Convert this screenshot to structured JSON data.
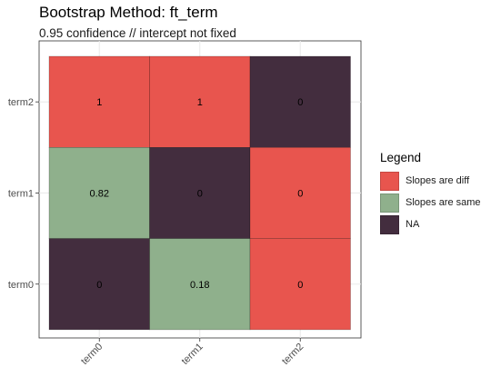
{
  "chart_data": {
    "type": "heatmap",
    "title": "Bootstrap Method: ft_term",
    "subtitle": "0.95 confidence // intercept not fixed",
    "x_categories": [
      "term0",
      "term1",
      "term2"
    ],
    "y_categories": [
      "term0",
      "term1",
      "term2"
    ],
    "cells": [
      {
        "x": "term0",
        "y": "term2",
        "value": "1",
        "group": "Slopes are diff"
      },
      {
        "x": "term1",
        "y": "term2",
        "value": "1",
        "group": "Slopes are diff"
      },
      {
        "x": "term2",
        "y": "term2",
        "value": "0",
        "group": "NA"
      },
      {
        "x": "term0",
        "y": "term1",
        "value": "0.82",
        "group": "Slopes are same"
      },
      {
        "x": "term1",
        "y": "term1",
        "value": "0",
        "group": "NA"
      },
      {
        "x": "term2",
        "y": "term1",
        "value": "0",
        "group": "Slopes are diff"
      },
      {
        "x": "term0",
        "y": "term0",
        "value": "0",
        "group": "NA"
      },
      {
        "x": "term1",
        "y": "term0",
        "value": "0.18",
        "group": "Slopes are same"
      },
      {
        "x": "term2",
        "y": "term0",
        "value": "0",
        "group": "Slopes are diff"
      }
    ],
    "legend": {
      "title": "Legend",
      "position": "right",
      "items": [
        {
          "label": "Slopes are diff",
          "color": "#E8554E"
        },
        {
          "label": "Slopes are same",
          "color": "#8FB08C"
        },
        {
          "label": "NA",
          "color": "#432D3E"
        }
      ]
    },
    "grid": true
  }
}
